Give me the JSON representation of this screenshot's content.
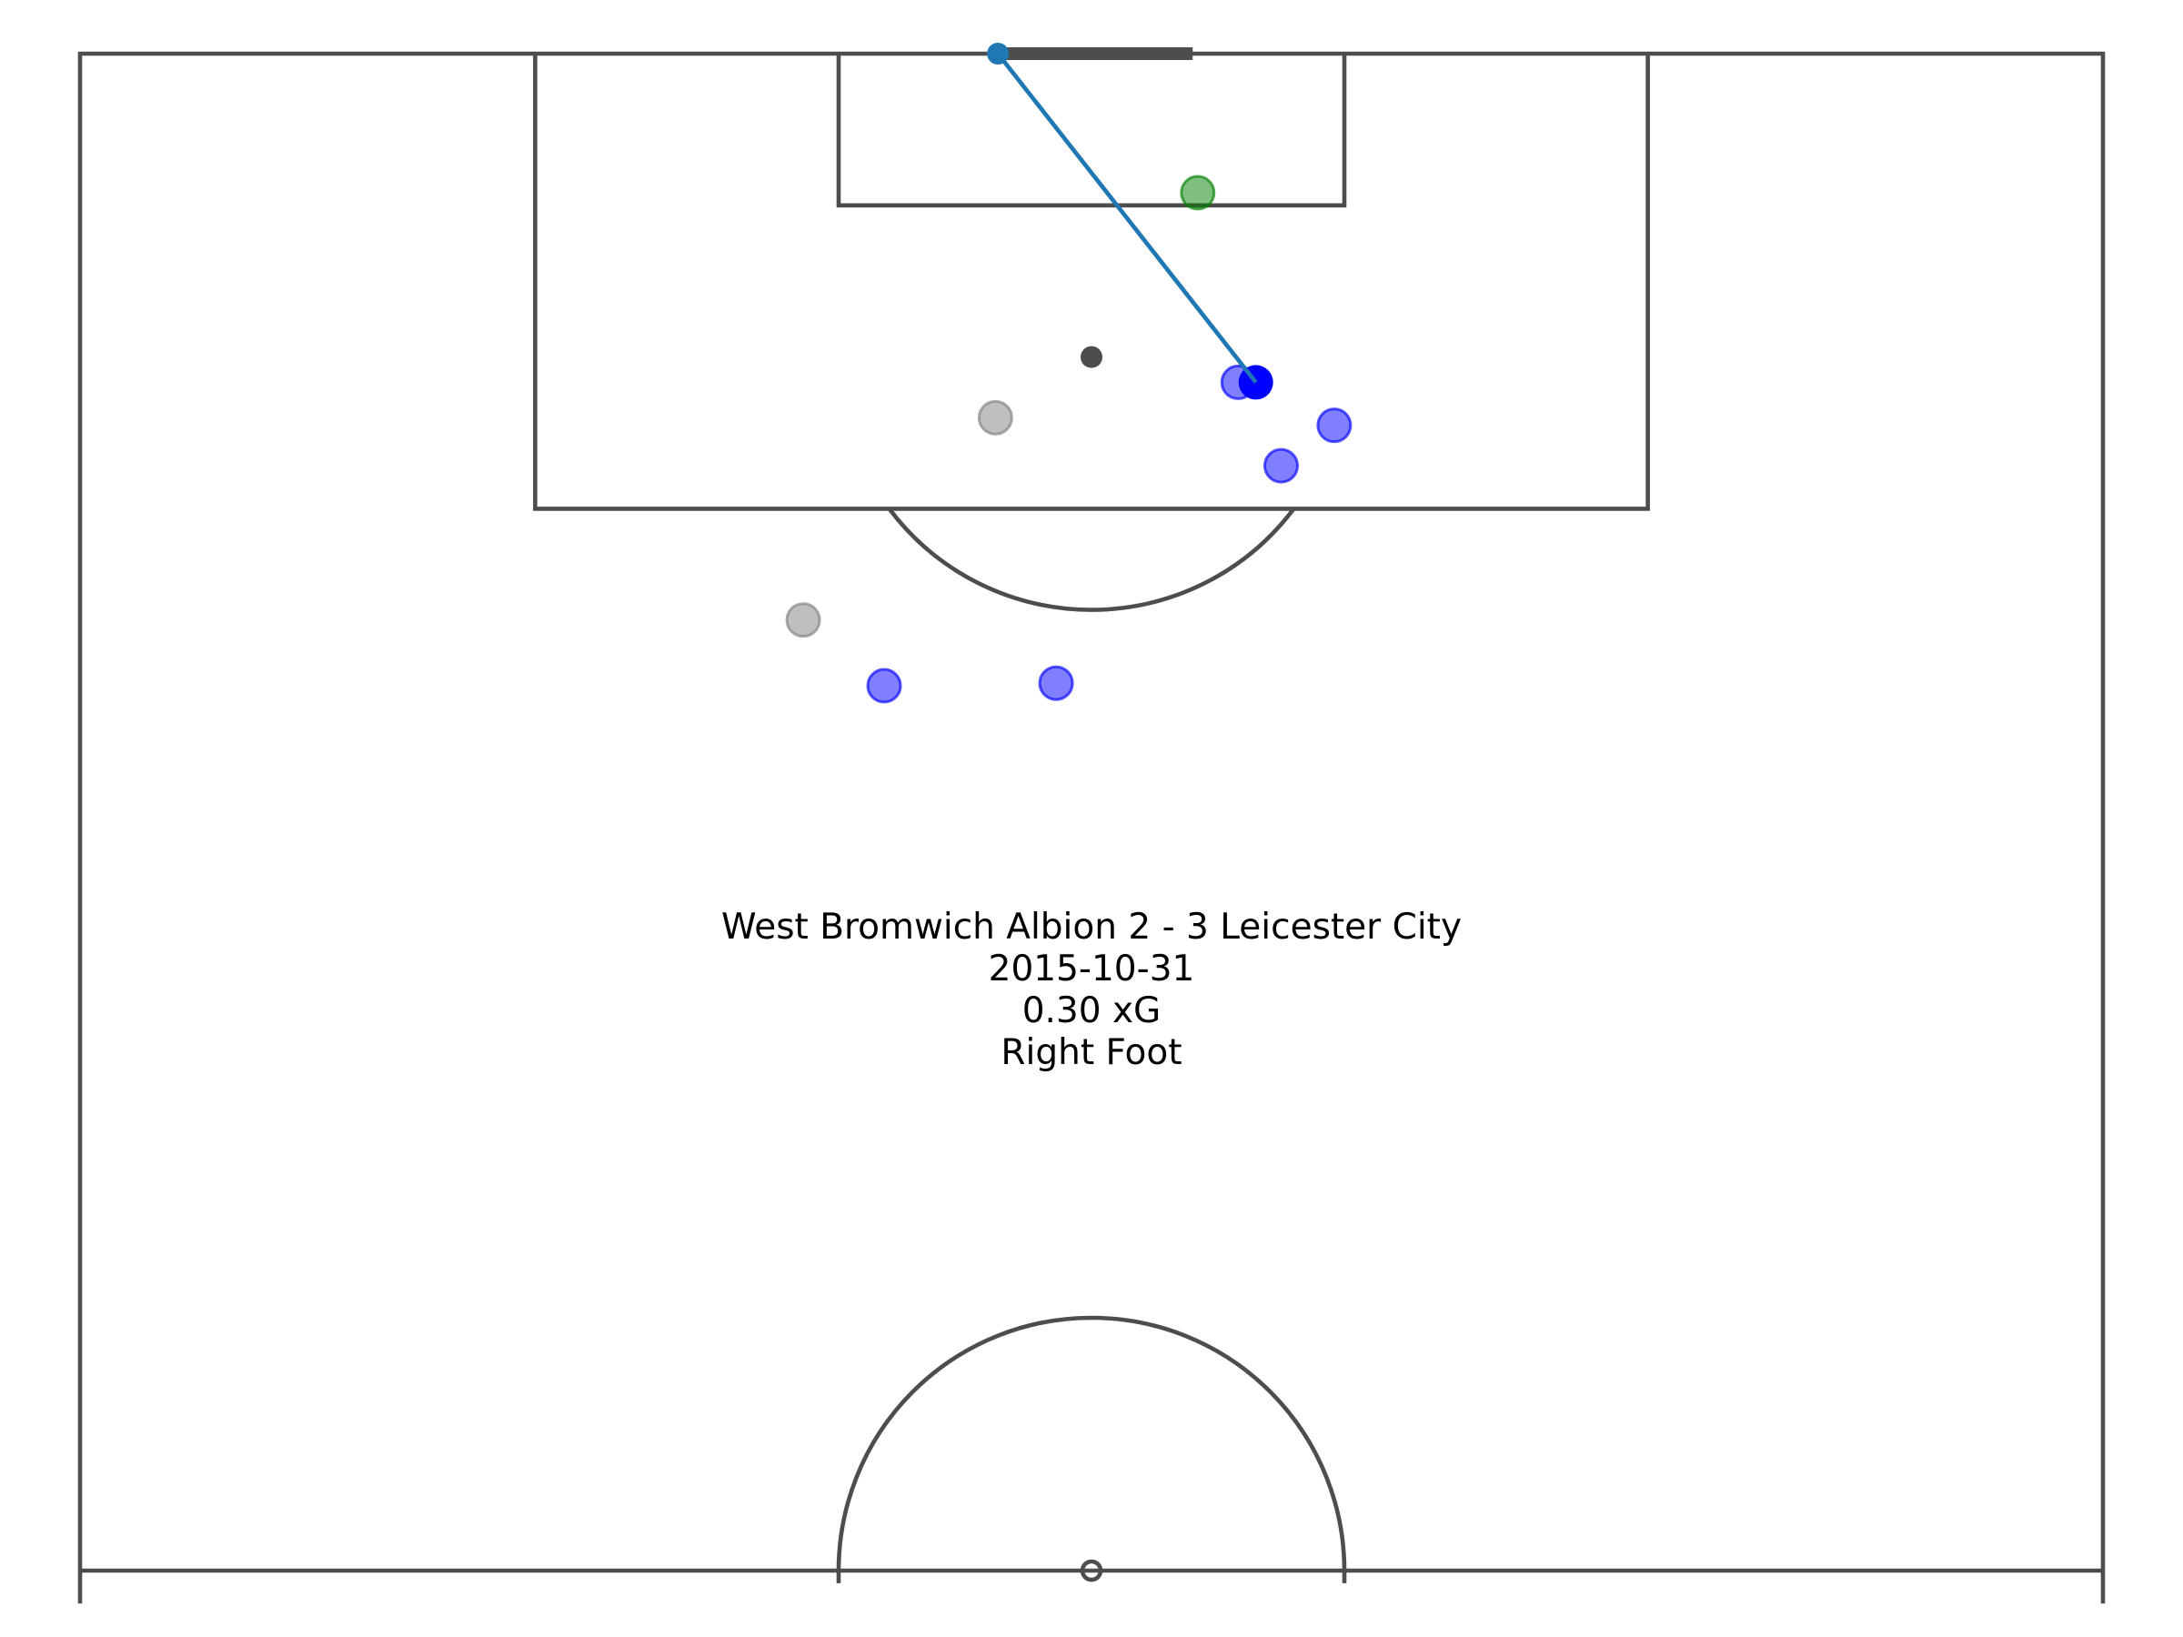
{
  "chart_data": {
    "type": "scatter",
    "title": "",
    "xlabel": "",
    "ylabel": "",
    "annotation": {
      "match": "West Bromwich Albion 2 - 3 Leicester City",
      "date": "2015-10-31",
      "xg": "0.30 xG",
      "body_part": "Right Foot"
    },
    "pitch": {
      "view": "vertical half pitch",
      "x_range": [
        0,
        80
      ],
      "y_range": [
        60,
        120
      ]
    },
    "shot": {
      "start": {
        "x": 46.5,
        "y": 107.0
      },
      "end": {
        "x": 36.3,
        "y": 120.0
      }
    },
    "freeze_frame": {
      "series": [
        {
          "role": "shooter",
          "color": "#0000ff",
          "opacity": 1.0,
          "points": [
            {
              "x": 46.5,
              "y": 107.0
            }
          ]
        },
        {
          "role": "teammate",
          "color": "#0000ff",
          "opacity": 0.5,
          "points": [
            {
              "x": 45.8,
              "y": 107.0
            },
            {
              "x": 49.6,
              "y": 105.3
            },
            {
              "x": 47.5,
              "y": 103.7
            },
            {
              "x": 31.8,
              "y": 95.0
            },
            {
              "x": 38.6,
              "y": 95.1
            }
          ]
        },
        {
          "role": "opponent",
          "color": "#808080",
          "opacity": 0.5,
          "points": [
            {
              "x": 36.2,
              "y": 105.6
            },
            {
              "x": 28.6,
              "y": 97.6
            }
          ]
        },
        {
          "role": "goalkeeper",
          "color": "#008000",
          "opacity": 0.5,
          "points": [
            {
              "x": 44.2,
              "y": 114.5
            }
          ]
        }
      ]
    },
    "colors": {
      "lines": "#4d4d4d",
      "shot_line": "#1f77b4",
      "background": "#ffffff"
    }
  }
}
